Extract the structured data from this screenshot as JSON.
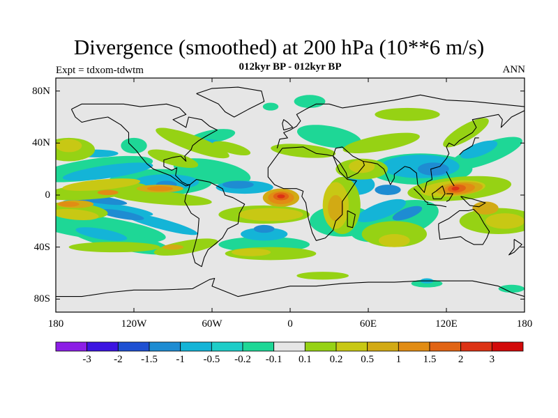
{
  "header": {
    "title": "Divergence (smoothed) at 200 hPa (10**6 m/s)",
    "subtitle": "012kyr BP - 012kyr BP",
    "experiment": "Expt = tdxom-tdwtm",
    "season": "ANN"
  },
  "map": {
    "lat_ticks": [
      {
        "value": 80,
        "label": "80N"
      },
      {
        "value": 40,
        "label": "40N"
      },
      {
        "value": 0,
        "label": "0"
      },
      {
        "value": -40,
        "label": "40S"
      },
      {
        "value": -80,
        "label": "80S"
      }
    ],
    "lon_ticks": [
      {
        "value": -180,
        "label": "180"
      },
      {
        "value": -120,
        "label": "120W"
      },
      {
        "value": -60,
        "label": "60W"
      },
      {
        "value": 0,
        "label": "0"
      },
      {
        "value": 60,
        "label": "60E"
      },
      {
        "value": 120,
        "label": "120E"
      },
      {
        "value": 180,
        "label": "180"
      }
    ],
    "lon_range": [
      -180,
      180
    ],
    "lat_range": [
      -90,
      90
    ],
    "background_color": "#e6e6e6",
    "coastline_color": "#000000"
  },
  "colorbar": {
    "colors": [
      "#8c1ee6",
      "#3c14e1",
      "#1e50d2",
      "#1e8cd2",
      "#14b4d7",
      "#1ecdc8",
      "#1ed796",
      "#e6e6e6",
      "#96d214",
      "#c8c814",
      "#d2aa14",
      "#e18c14",
      "#e16414",
      "#dc3214",
      "#d20a0a"
    ],
    "labels": [
      "-3",
      "-2",
      "-1.5",
      "-1",
      "-0.5",
      "-0.2",
      "-0.1",
      "0.1",
      "0.2",
      "0.5",
      "1",
      "1.5",
      "2",
      "3"
    ]
  },
  "contour_levels": {
    "strong_negative": "#1e50d2",
    "moderate_negative": "#1e8cd2",
    "weak_negative": "#14b4d7",
    "slight_negative": "#1ecdc8",
    "near_zero_negative": "#1ed796",
    "near_zero": "#e6e6e6",
    "slight_positive": "#96d214",
    "weak_positive": "#c8c814",
    "moderate_positive": "#d2aa14",
    "strong_positive": "#e18c14",
    "very_strong_positive": "#e16414",
    "extreme_positive": "#dc3214"
  }
}
